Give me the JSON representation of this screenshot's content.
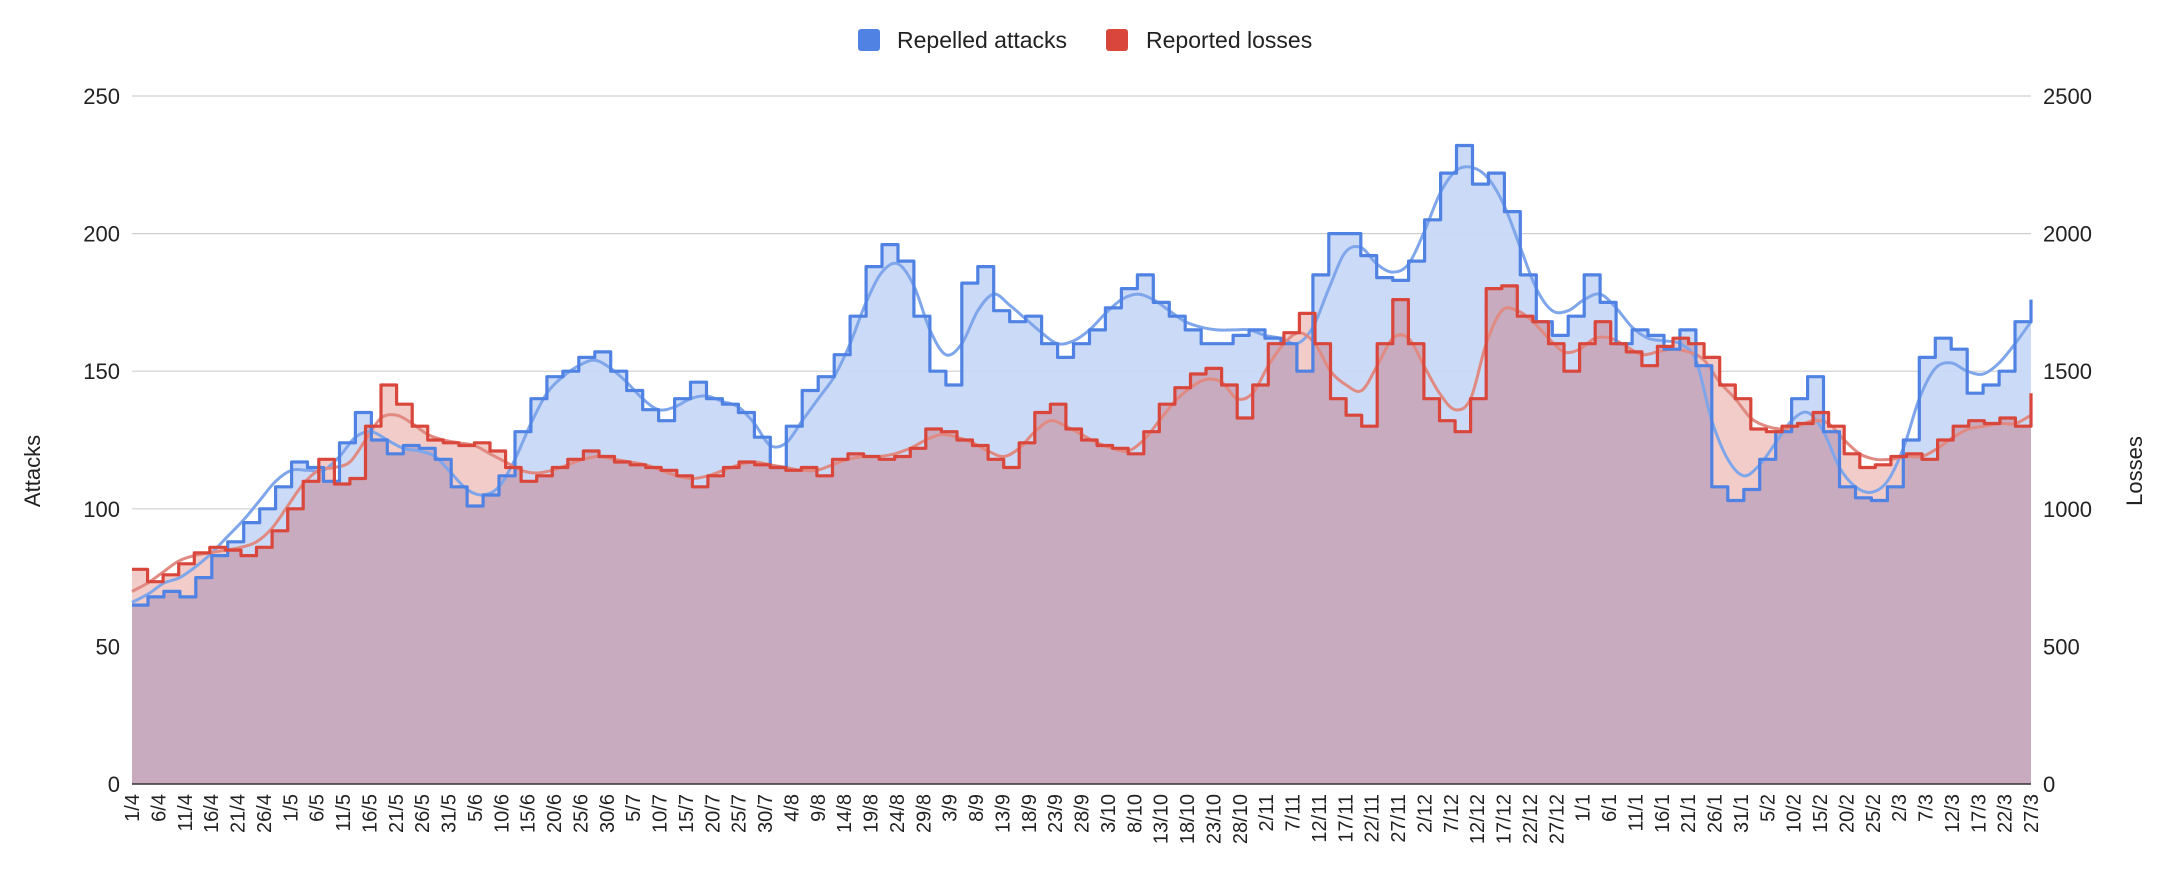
{
  "chart_data": {
    "type": "area",
    "legend_position": "top",
    "grid": true,
    "colors": {
      "attacks_line": "#4F82E3",
      "attacks_fill": "#C8D8F5",
      "attacks_trend": "#7FA6EA",
      "losses_line": "#D9463B",
      "losses_fill": "#C9ABBF",
      "losses_fill_above": "#EEC3BE",
      "losses_trend": "#E08A82",
      "grid": "#CFCFCF",
      "baseline": "#333333"
    },
    "y_left": {
      "label": "Attacks",
      "min": 0,
      "max": 250,
      "ticks": [
        "0",
        "50",
        "100",
        "150",
        "200",
        "250"
      ]
    },
    "y_right": {
      "label": "Losses",
      "min": 0,
      "max": 2500,
      "ticks": [
        "0",
        "500",
        "1000",
        "1500",
        "2000",
        "2500"
      ]
    },
    "x_tick_labels": [
      "1/4",
      "6/4",
      "11/4",
      "16/4",
      "21/4",
      "26/4",
      "1/5",
      "6/5",
      "11/5",
      "16/5",
      "21/5",
      "26/5",
      "31/5",
      "5/6",
      "10/6",
      "15/6",
      "20/6",
      "25/6",
      "30/6",
      "5/7",
      "10/7",
      "15/7",
      "20/7",
      "25/7",
      "30/7",
      "4/8",
      "9/8",
      "14/8",
      "19/8",
      "24/8",
      "29/8",
      "3/9",
      "8/9",
      "13/9",
      "18/9",
      "23/9",
      "28/9",
      "3/10",
      "8/10",
      "13/10",
      "18/10",
      "23/10",
      "28/10",
      "2/11",
      "7/11",
      "12/11",
      "17/11",
      "22/11",
      "27/11",
      "2/12",
      "7/12",
      "12/12",
      "17/12",
      "22/12",
      "27/12",
      "1/1",
      "6/1",
      "11/1",
      "16/1",
      "21/1",
      "26/1",
      "31/1",
      "5/2",
      "10/2",
      "15/2",
      "20/2",
      "25/2",
      "2/3",
      "7/3",
      "12/3",
      "17/3",
      "22/3",
      "27/3"
    ],
    "series": [
      {
        "name": "Repelled attacks",
        "axis": "left",
        "values": [
          65,
          68,
          70,
          68,
          75,
          83,
          88,
          95,
          100,
          108,
          117,
          115,
          110,
          124,
          135,
          125,
          120,
          123,
          122,
          118,
          108,
          101,
          105,
          112,
          128,
          140,
          148,
          150,
          155,
          157,
          150,
          143,
          136,
          132,
          140,
          146,
          140,
          138,
          135,
          126,
          115,
          130,
          143,
          148,
          156,
          170,
          188,
          196,
          190,
          170,
          150,
          145,
          182,
          188,
          172,
          168,
          170,
          160,
          155,
          160,
          165,
          173,
          180,
          185,
          175,
          170,
          165,
          160,
          160,
          163,
          165,
          162,
          160,
          150,
          185,
          200,
          200,
          192,
          184,
          183,
          190,
          205,
          222,
          232,
          218,
          222,
          208,
          185,
          168,
          163,
          170,
          185,
          175,
          160,
          165,
          163,
          158,
          165,
          152,
          108,
          103,
          107,
          118,
          128,
          140,
          148,
          128,
          108,
          104,
          103,
          108,
          125,
          155,
          162,
          158,
          142,
          145,
          150,
          168,
          176
        ],
        "trend": [
          66,
          69,
          73,
          75,
          79,
          84,
          90,
          96,
          103,
          110,
          114,
          114,
          114,
          119,
          126,
          128,
          125,
          122,
          121,
          119,
          113,
          107,
          105,
          108,
          118,
          131,
          142,
          148,
          152,
          154,
          151,
          146,
          140,
          136,
          137,
          140,
          141,
          139,
          137,
          131,
          123,
          124,
          132,
          140,
          148,
          160,
          175,
          186,
          189,
          181,
          165,
          156,
          160,
          172,
          178,
          174,
          169,
          164,
          160,
          161,
          165,
          171,
          176,
          178,
          176,
          172,
          168,
          166,
          165,
          165,
          165,
          163,
          162,
          160,
          166,
          180,
          193,
          195,
          189,
          186,
          189,
          201,
          215,
          223,
          224,
          220,
          210,
          195,
          180,
          172,
          172,
          176,
          178,
          173,
          166,
          162,
          161,
          160,
          154,
          132,
          118,
          112,
          116,
          124,
          132,
          135,
          128,
          115,
          108,
          106,
          110,
          122,
          140,
          151,
          153,
          150,
          149,
          153,
          160,
          168
        ]
      },
      {
        "name": "Reported losses",
        "axis": "right",
        "values": [
          780,
          735,
          760,
          800,
          840,
          860,
          850,
          830,
          860,
          920,
          1000,
          1100,
          1180,
          1090,
          1110,
          1300,
          1450,
          1380,
          1300,
          1250,
          1240,
          1230,
          1240,
          1210,
          1150,
          1100,
          1120,
          1150,
          1180,
          1210,
          1190,
          1170,
          1160,
          1150,
          1140,
          1120,
          1080,
          1120,
          1150,
          1170,
          1160,
          1150,
          1140,
          1150,
          1120,
          1180,
          1200,
          1190,
          1180,
          1190,
          1220,
          1290,
          1280,
          1250,
          1230,
          1180,
          1150,
          1240,
          1350,
          1380,
          1290,
          1250,
          1230,
          1220,
          1200,
          1280,
          1380,
          1440,
          1490,
          1510,
          1450,
          1330,
          1450,
          1600,
          1640,
          1710,
          1600,
          1400,
          1340,
          1300,
          1600,
          1760,
          1600,
          1400,
          1320,
          1280,
          1400,
          1800,
          1810,
          1700,
          1680,
          1600,
          1500,
          1600,
          1680,
          1600,
          1570,
          1520,
          1590,
          1620,
          1600,
          1550,
          1450,
          1400,
          1290,
          1280,
          1300,
          1310,
          1350,
          1300,
          1200,
          1150,
          1160,
          1190,
          1200,
          1180,
          1250,
          1300,
          1320,
          1310,
          1330,
          1300,
          1420
        ],
        "trend": [
          700,
          730,
          770,
          810,
          830,
          840,
          850,
          860,
          880,
          930,
          1010,
          1090,
          1140,
          1150,
          1170,
          1250,
          1330,
          1340,
          1310,
          1270,
          1250,
          1240,
          1230,
          1200,
          1170,
          1140,
          1130,
          1140,
          1160,
          1180,
          1190,
          1180,
          1170,
          1160,
          1140,
          1120,
          1110,
          1120,
          1140,
          1160,
          1170,
          1160,
          1150,
          1140,
          1140,
          1160,
          1180,
          1190,
          1190,
          1200,
          1220,
          1250,
          1270,
          1260,
          1240,
          1210,
          1190,
          1220,
          1280,
          1320,
          1300,
          1270,
          1240,
          1220,
          1210,
          1250,
          1320,
          1390,
          1440,
          1470,
          1460,
          1400,
          1420,
          1520,
          1600,
          1640,
          1600,
          1500,
          1450,
          1430,
          1520,
          1620,
          1620,
          1520,
          1420,
          1360,
          1400,
          1600,
          1720,
          1720,
          1680,
          1620,
          1570,
          1580,
          1620,
          1620,
          1590,
          1560,
          1570,
          1580,
          1570,
          1540,
          1460,
          1400,
          1330,
          1300,
          1290,
          1300,
          1320,
          1310,
          1250,
          1200,
          1180,
          1180,
          1190,
          1190,
          1220,
          1260,
          1290,
          1300,
          1310,
          1310,
          1340
        ]
      }
    ]
  }
}
